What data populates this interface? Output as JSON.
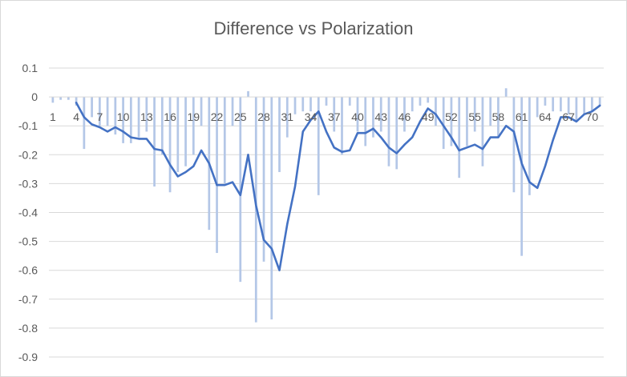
{
  "chart_data": {
    "type": "bar",
    "title": "Difference vs Polarization",
    "xlabel": "",
    "ylabel": "",
    "ylim": [
      -0.9,
      0.1
    ],
    "yticks": [
      0.1,
      0,
      -0.1,
      -0.2,
      -0.3,
      -0.4,
      -0.5,
      -0.6,
      -0.7,
      -0.8,
      -0.9
    ],
    "ytick_labels": [
      "0.1",
      "0",
      "-0.1",
      "-0.2",
      "-0.3",
      "-0.4",
      "-0.5",
      "-0.6",
      "-0.7",
      "-0.8",
      "-0.9"
    ],
    "xtick_labels": [
      "1",
      "4",
      "7",
      "10",
      "13",
      "16",
      "19",
      "22",
      "25",
      "28",
      "31",
      "34",
      "37",
      "40",
      "43",
      "46",
      "49",
      "52",
      "55",
      "58",
      "61",
      "64",
      "67",
      "70"
    ],
    "grid": "horizontal",
    "legend": "none",
    "colors": {
      "bars": "#b4c7e7",
      "line": "#4472c4",
      "grid": "#d9d9d9",
      "text": "#595959"
    },
    "x": [
      1,
      2,
      3,
      4,
      5,
      6,
      7,
      8,
      9,
      10,
      11,
      12,
      13,
      14,
      15,
      16,
      17,
      18,
      19,
      20,
      21,
      22,
      23,
      24,
      25,
      26,
      27,
      28,
      29,
      30,
      31,
      32,
      33,
      34,
      35,
      36,
      37,
      38,
      39,
      40,
      41,
      42,
      43,
      44,
      45,
      46,
      47,
      48,
      49,
      50,
      51,
      52,
      53,
      54,
      55,
      56,
      57,
      58,
      59,
      60,
      61,
      62,
      63,
      64,
      65,
      66,
      67,
      68,
      69,
      70,
      71
    ],
    "series": [
      {
        "type": "bar",
        "values": [
          -0.02,
          -0.01,
          -0.01,
          -0.03,
          -0.18,
          -0.07,
          -0.1,
          -0.1,
          -0.13,
          -0.16,
          -0.16,
          -0.14,
          -0.12,
          -0.31,
          -0.2,
          -0.33,
          -0.26,
          -0.24,
          -0.2,
          -0.1,
          -0.46,
          -0.54,
          -0.3,
          -0.1,
          -0.64,
          0.02,
          -0.78,
          -0.57,
          -0.77,
          -0.26,
          -0.14,
          -0.06,
          -0.05,
          -0.05,
          -0.34,
          -0.03,
          -0.12,
          -0.2,
          -0.03,
          -0.12,
          -0.17,
          -0.14,
          -0.12,
          -0.24,
          -0.25,
          -0.12,
          -0.05,
          -0.03,
          -0.02,
          -0.1,
          -0.18,
          -0.17,
          -0.28,
          -0.17,
          -0.12,
          -0.24,
          -0.1,
          -0.14,
          0.03,
          -0.33,
          -0.55,
          -0.34,
          -0.07,
          -0.03,
          -0.05,
          -0.05,
          -0.06,
          -0.08,
          -0.06,
          -0.05,
          -0.03
        ]
      },
      {
        "type": "line",
        "x": [
          4,
          5,
          6,
          7,
          8,
          9,
          10,
          11,
          12,
          13,
          14,
          15,
          16,
          17,
          18,
          19,
          20,
          21,
          22,
          23,
          24,
          25,
          26,
          27,
          28,
          29,
          30,
          31,
          32,
          33,
          34,
          35,
          36,
          37,
          38,
          39,
          40,
          41,
          42,
          43,
          44,
          45,
          46,
          47,
          48,
          49,
          50,
          51,
          52,
          53,
          54,
          55,
          56,
          57,
          58,
          59,
          60,
          61,
          62,
          63,
          64,
          65,
          66,
          67,
          68,
          69,
          70,
          71
        ],
        "values": [
          -0.02,
          -0.07,
          -0.095,
          -0.105,
          -0.12,
          -0.105,
          -0.12,
          -0.14,
          -0.145,
          -0.145,
          -0.18,
          -0.185,
          -0.235,
          -0.275,
          -0.26,
          -0.24,
          -0.185,
          -0.23,
          -0.305,
          -0.305,
          -0.295,
          -0.34,
          -0.2,
          -0.375,
          -0.495,
          -0.525,
          -0.6,
          -0.44,
          -0.31,
          -0.12,
          -0.08,
          -0.05,
          -0.12,
          -0.175,
          -0.19,
          -0.185,
          -0.125,
          -0.125,
          -0.11,
          -0.14,
          -0.175,
          -0.195,
          -0.165,
          -0.14,
          -0.085,
          -0.04,
          -0.06,
          -0.1,
          -0.14,
          -0.185,
          -0.175,
          -0.165,
          -0.18,
          -0.14,
          -0.14,
          -0.1,
          -0.12,
          -0.23,
          -0.295,
          -0.315,
          -0.24,
          -0.15,
          -0.07,
          -0.07,
          -0.085,
          -0.06,
          -0.05,
          -0.03
        ]
      }
    ]
  }
}
